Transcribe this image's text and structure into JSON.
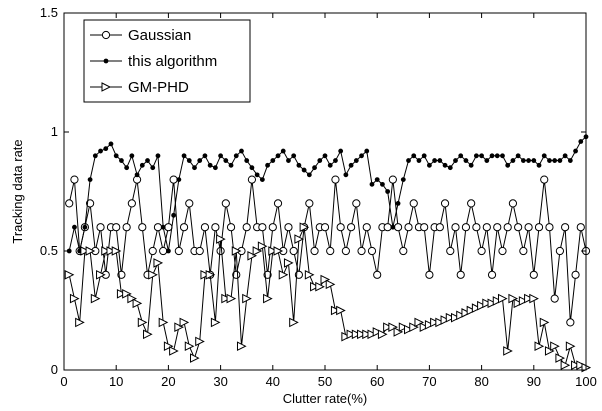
{
  "chart_data": {
    "type": "line",
    "title": "",
    "xlabel": "Clutter rate(%)",
    "ylabel": "Tracking data rate",
    "xlim": [
      0,
      100
    ],
    "ylim": [
      0,
      1.5
    ],
    "x_ticks": [
      0,
      10,
      20,
      30,
      40,
      50,
      60,
      70,
      80,
      90,
      100
    ],
    "y_ticks": [
      0,
      0.5,
      1,
      1.5
    ],
    "x_tick_labels": [
      "0",
      "10",
      "20",
      "30",
      "40",
      "50",
      "60",
      "70",
      "80",
      "90",
      "100"
    ],
    "y_tick_labels": [
      "0",
      "0.5",
      "1",
      "1.5"
    ],
    "grid": false,
    "legend_position": "top-left",
    "x": [
      1,
      2,
      3,
      4,
      5,
      6,
      7,
      8,
      9,
      10,
      11,
      12,
      13,
      14,
      15,
      16,
      17,
      18,
      19,
      20,
      21,
      22,
      23,
      24,
      25,
      26,
      27,
      28,
      29,
      30,
      31,
      32,
      33,
      34,
      35,
      36,
      37,
      38,
      39,
      40,
      41,
      42,
      43,
      44,
      45,
      46,
      47,
      48,
      49,
      50,
      51,
      52,
      53,
      54,
      55,
      56,
      57,
      58,
      59,
      60,
      61,
      62,
      63,
      64,
      65,
      66,
      67,
      68,
      69,
      70,
      71,
      72,
      73,
      74,
      75,
      76,
      77,
      78,
      79,
      80,
      81,
      82,
      83,
      84,
      85,
      86,
      87,
      88,
      89,
      90,
      91,
      92,
      93,
      94,
      95,
      96,
      97,
      98,
      99,
      100
    ],
    "series": [
      {
        "name": "Gaussian",
        "marker": "circle",
        "values": [
          0.7,
          0.8,
          0.5,
          0.6,
          0.7,
          0.5,
          0.6,
          0.4,
          0.6,
          0.6,
          0.4,
          0.6,
          0.7,
          0.8,
          0.6,
          0.4,
          0.5,
          0.6,
          0.5,
          0.6,
          0.8,
          0.5,
          0.6,
          0.7,
          0.5,
          0.5,
          0.6,
          0.4,
          0.6,
          0.5,
          0.7,
          0.6,
          0.4,
          0.5,
          0.6,
          0.8,
          0.6,
          0.6,
          0.4,
          0.6,
          0.7,
          0.5,
          0.6,
          0.5,
          0.4,
          0.6,
          0.7,
          0.5,
          0.6,
          0.6,
          0.5,
          0.8,
          0.6,
          0.5,
          0.6,
          0.7,
          0.5,
          0.6,
          0.5,
          0.4,
          0.6,
          0.6,
          0.8,
          0.6,
          0.5,
          0.6,
          0.7,
          0.6,
          0.6,
          0.4,
          0.6,
          0.6,
          0.7,
          0.5,
          0.6,
          0.4,
          0.6,
          0.7,
          0.6,
          0.5,
          0.6,
          0.4,
          0.6,
          0.5,
          0.6,
          0.7,
          0.6,
          0.5,
          0.6,
          0.4,
          0.6,
          0.8,
          0.6,
          0.3,
          0.5,
          0.6,
          0.2,
          0.4,
          0.6,
          0.5
        ]
      },
      {
        "name": "this algorithm",
        "marker": "dot",
        "values": [
          0.5,
          0.6,
          0.5,
          0.6,
          0.8,
          0.9,
          0.92,
          0.93,
          0.95,
          0.9,
          0.88,
          0.85,
          0.9,
          0.82,
          0.86,
          0.88,
          0.85,
          0.9,
          0.6,
          0.5,
          0.65,
          0.8,
          0.9,
          0.88,
          0.85,
          0.88,
          0.9,
          0.86,
          0.85,
          0.9,
          0.88,
          0.86,
          0.9,
          0.92,
          0.88,
          0.85,
          0.82,
          0.8,
          0.86,
          0.88,
          0.9,
          0.92,
          0.88,
          0.9,
          0.86,
          0.84,
          0.82,
          0.85,
          0.88,
          0.9,
          0.86,
          0.88,
          0.92,
          0.82,
          0.86,
          0.88,
          0.9,
          0.92,
          0.78,
          0.8,
          0.78,
          0.75,
          0.6,
          0.7,
          0.8,
          0.88,
          0.9,
          0.88,
          0.9,
          0.86,
          0.88,
          0.88,
          0.86,
          0.85,
          0.88,
          0.9,
          0.88,
          0.86,
          0.9,
          0.9,
          0.88,
          0.9,
          0.9,
          0.9,
          0.86,
          0.88,
          0.9,
          0.88,
          0.88,
          0.88,
          0.86,
          0.9,
          0.88,
          0.88,
          0.88,
          0.9,
          0.88,
          0.92,
          0.96,
          0.98
        ]
      },
      {
        "name": "GM-PHD",
        "marker": "triangle-right",
        "values": [
          0.4,
          0.3,
          0.2,
          0.5,
          0.5,
          0.3,
          0.4,
          0.5,
          0.5,
          0.5,
          0.32,
          0.32,
          0.3,
          0.28,
          0.2,
          0.15,
          0.4,
          0.45,
          0.2,
          0.1,
          0.08,
          0.18,
          0.2,
          0.1,
          0.05,
          0.12,
          0.4,
          0.4,
          0.2,
          0.55,
          0.3,
          0.3,
          0.5,
          0.1,
          0.3,
          0.48,
          0.5,
          0.52,
          0.3,
          0.5,
          0.5,
          0.4,
          0.45,
          0.2,
          0.55,
          0.6,
          0.4,
          0.35,
          0.35,
          0.38,
          0.36,
          0.25,
          0.25,
          0.14,
          0.15,
          0.15,
          0.15,
          0.15,
          0.15,
          0.16,
          0.15,
          0.18,
          0.18,
          0.16,
          0.18,
          0.17,
          0.18,
          0.2,
          0.18,
          0.19,
          0.2,
          0.2,
          0.21,
          0.22,
          0.22,
          0.23,
          0.24,
          0.25,
          0.26,
          0.27,
          0.28,
          0.28,
          0.29,
          0.3,
          0.08,
          0.3,
          0.28,
          0.29,
          0.3,
          0.3,
          0.1,
          0.2,
          0.08,
          0.1,
          0.05,
          0.02,
          0.1,
          0.02,
          0.02,
          0.01
        ]
      }
    ]
  }
}
